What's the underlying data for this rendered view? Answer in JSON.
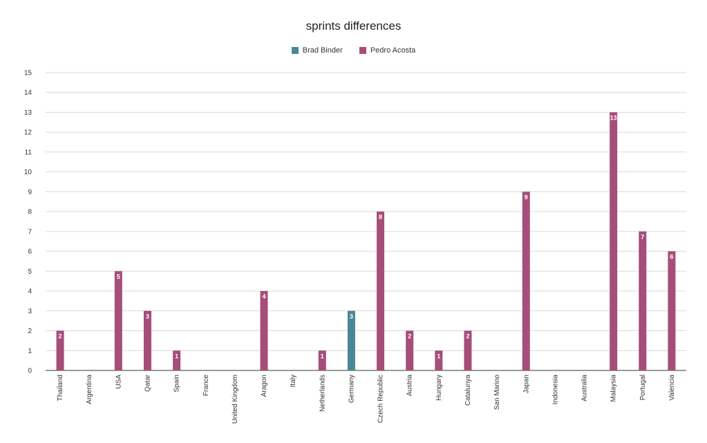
{
  "chart_data": {
    "type": "bar",
    "title": "sprints differences",
    "xlabel": "",
    "ylabel": "",
    "ylim": [
      0,
      15
    ],
    "yticks": [
      0,
      1,
      2,
      3,
      4,
      5,
      6,
      7,
      8,
      9,
      10,
      11,
      12,
      13,
      14,
      15
    ],
    "grid": true,
    "legend_position": "top-center",
    "categories": [
      "Thailand",
      "Argentina",
      "USA",
      "Qatar",
      "Spain",
      "France",
      "United Kingdom",
      "Aragon",
      "Italy",
      "Netherlands",
      "Germany",
      "Czech Republic",
      "Austria",
      "Hungary",
      "Catalunya",
      "San Marino",
      "Japan",
      "Indonesia",
      "Australia",
      "Malaysia",
      "Portugal",
      "Valencia"
    ],
    "series": [
      {
        "name": "Brad Binder",
        "color": "#4a8795",
        "values": [
          null,
          null,
          null,
          null,
          null,
          null,
          null,
          null,
          null,
          null,
          3,
          null,
          null,
          null,
          null,
          null,
          null,
          null,
          null,
          null,
          null,
          null
        ]
      },
      {
        "name": "Pedro Acosta",
        "color": "#a64d79",
        "values": [
          2,
          null,
          5,
          3,
          1,
          null,
          null,
          4,
          null,
          1,
          null,
          8,
          2,
          1,
          2,
          null,
          9,
          null,
          null,
          13,
          7,
          6
        ]
      }
    ]
  }
}
